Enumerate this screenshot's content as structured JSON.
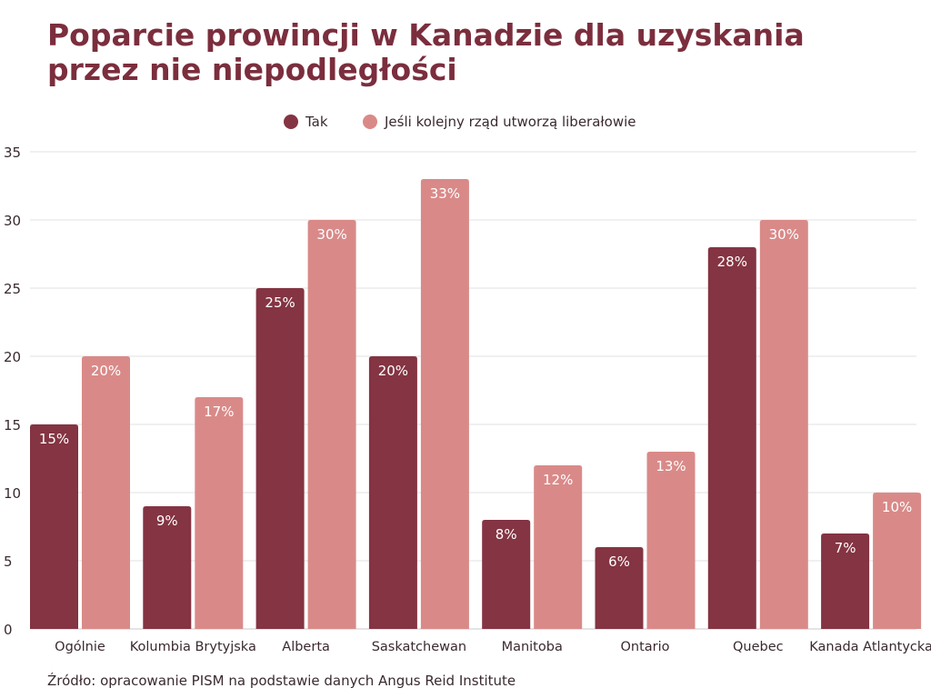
{
  "chart_data": {
    "type": "bar",
    "title": "Poparcie prowincji w Kanadzie dla uzyskania przez nie niepodległości",
    "xlabel": "",
    "ylabel": "",
    "ylim": [
      0,
      35
    ],
    "yticks": [
      0,
      5,
      10,
      15,
      20,
      25,
      30,
      35
    ],
    "grid": true,
    "legend_position": "top-center",
    "categories": [
      "Ogólnie",
      "Kolumbia Brytyjska",
      "Alberta",
      "Saskatchewan",
      "Manitoba",
      "Ontario",
      "Quebec",
      "Kanada Atlantycka"
    ],
    "series": [
      {
        "name": "Tak",
        "color": "#843442",
        "values": [
          15,
          9,
          25,
          20,
          8,
          6,
          28,
          7
        ]
      },
      {
        "name": "Jeśli kolejny rząd utworzą liberałowie",
        "color": "#d98a88",
        "values": [
          20,
          17,
          30,
          33,
          12,
          13,
          30,
          10
        ]
      }
    ],
    "value_suffix": "%",
    "source": "Źródło: opracowanie PISM na podstawie danych Angus Reid Institute"
  }
}
